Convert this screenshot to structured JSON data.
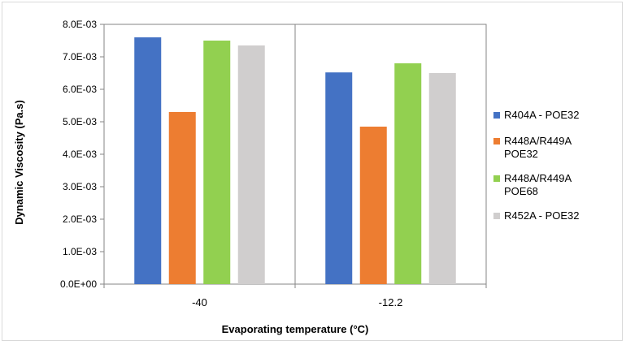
{
  "chart_data": {
    "type": "bar",
    "title": "",
    "xlabel": "Evaporating temperature (°C)",
    "ylabel": "Dynamic Viscosity (Pa.s)",
    "ylim": [
      0,
      0.008
    ],
    "yticks": [
      0,
      0.001,
      0.002,
      0.003,
      0.004,
      0.005,
      0.006,
      0.007,
      0.008
    ],
    "ytick_labels": [
      "0.0E+00",
      "1.0E-03",
      "2.0E-03",
      "3.0E-03",
      "4.0E-03",
      "5.0E-03",
      "6.0E-03",
      "7.0E-03",
      "8.0E-03"
    ],
    "categories": [
      "-40",
      "-12.2"
    ],
    "series": [
      {
        "name": "R404A - POE32",
        "legend_lines": [
          "R404A - POE32"
        ],
        "color": "#4472c4",
        "values": [
          0.0076,
          0.00652
        ]
      },
      {
        "name": "R448A/R449A POE32",
        "legend_lines": [
          "R448A/R449A",
          "POE32"
        ],
        "color": "#ed7d31",
        "values": [
          0.0053,
          0.00485
        ]
      },
      {
        "name": "R448A/R449A POE68",
        "legend_lines": [
          "R448A/R449A",
          "POE68"
        ],
        "color": "#92d050",
        "values": [
          0.0075,
          0.0068
        ]
      },
      {
        "name": "R452A - POE32",
        "legend_lines": [
          "R452A - POE32"
        ],
        "color": "#d0cece",
        "values": [
          0.00735,
          0.0065
        ]
      }
    ],
    "grid": false,
    "legend_position": "right"
  }
}
